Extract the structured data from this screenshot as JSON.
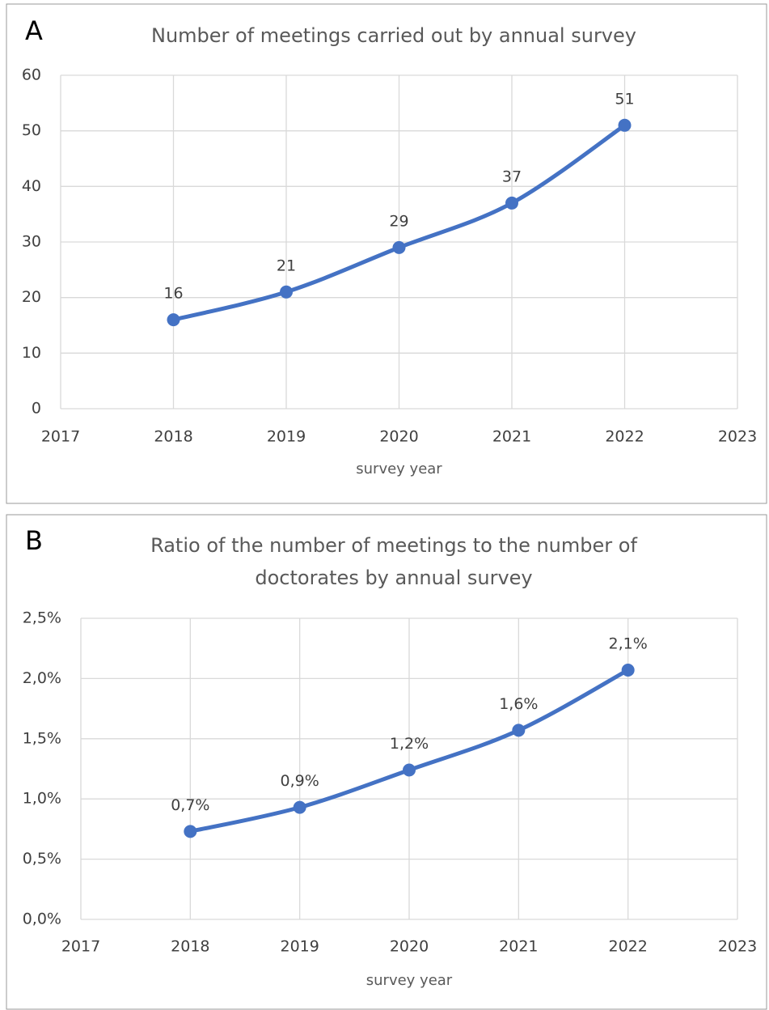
{
  "chart_data": [
    {
      "type": "line",
      "panel": "A",
      "title": [
        "Number of meetings carried out by annual survey"
      ],
      "x_label": "survey year",
      "x": [
        2018,
        2019,
        2020,
        2021,
        2022
      ],
      "series": [
        {
          "name": "meetings",
          "color": "#4472c4",
          "values": [
            16,
            21,
            29,
            37,
            51
          ]
        }
      ],
      "xlim": [
        2017,
        2023
      ],
      "xticks": [
        2017,
        2018,
        2019,
        2020,
        2021,
        2022,
        2023
      ],
      "ylim": [
        0,
        60
      ],
      "yticks": [
        0,
        10,
        20,
        30,
        40,
        50,
        60
      ],
      "grid": true
    },
    {
      "type": "line",
      "panel": "B",
      "title": [
        "Ratio of the number of meetings to the number of",
        "doctorates by annual survey"
      ],
      "x_label": "survey year",
      "x": [
        2018,
        2019,
        2020,
        2021,
        2022
      ],
      "series": [
        {
          "name": "ratio",
          "color": "#4472c4",
          "values": [
            0.73,
            0.93,
            1.24,
            1.57,
            2.07
          ],
          "value_labels": [
            "0,7%",
            "0,9%",
            "1,2%",
            "1,6%",
            "2,1%"
          ]
        }
      ],
      "xlim": [
        2017,
        2023
      ],
      "xticks": [
        2017,
        2018,
        2019,
        2020,
        2021,
        2022,
        2023
      ],
      "ylim": [
        0,
        2.5
      ],
      "yticks": [
        {
          "value": 0,
          "label": "0,0%"
        },
        {
          "value": 0.5,
          "label": "0,5%"
        },
        {
          "value": 1,
          "label": "1,0%"
        },
        {
          "value": 1.5,
          "label": "1,5%"
        },
        {
          "value": 2,
          "label": "2,0%"
        },
        {
          "value": 2.5,
          "label": "2,5%"
        }
      ],
      "grid": true
    }
  ]
}
